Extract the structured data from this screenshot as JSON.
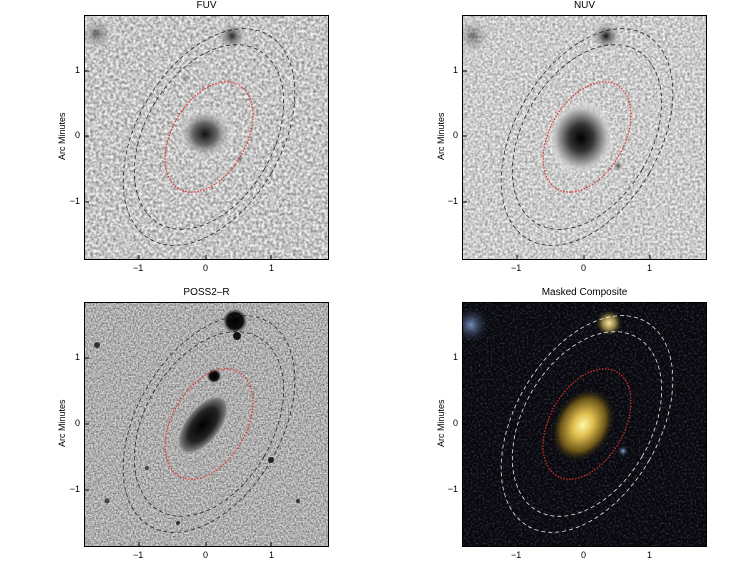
{
  "panels": [
    {
      "title": "FUV",
      "ylabel": "Arc Minutes",
      "style": "fuv"
    },
    {
      "title": "NUV",
      "ylabel": "Arc Minutes",
      "style": "nuv"
    },
    {
      "title": "POSS2–R",
      "ylabel": "Arc Minutes",
      "style": "poss"
    },
    {
      "title": "Masked Composite",
      "ylabel": "Arc Minutes",
      "style": "composite"
    }
  ],
  "x_ticks": [
    "−1",
    "0",
    "1"
  ],
  "y_ticks": [
    "1",
    "0",
    "−1"
  ],
  "colors": {
    "ellipse_inner": "#e0302a",
    "ellipse_outer_dark": "#222222",
    "ellipse_outer_light": "#e8e8e8",
    "composite_bg": "#07070c",
    "galaxy_core": "#fff6a8"
  }
}
